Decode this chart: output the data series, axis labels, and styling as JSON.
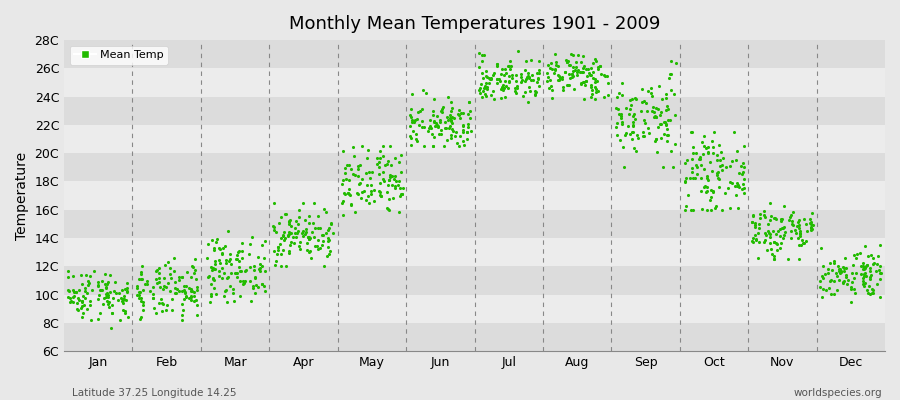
{
  "title": "Monthly Mean Temperatures 1901 - 2009",
  "ylabel": "Temperature",
  "subtitle_left": "Latitude 37.25 Longitude 14.25",
  "subtitle_right": "worldspecies.org",
  "legend_label": "Mean Temp",
  "dot_color": "#22bb00",
  "bg_color": "#e8e8e8",
  "plot_bg_light": "#ececec",
  "plot_bg_dark": "#dcdcdc",
  "yticks": [
    "6C",
    "8C",
    "10C",
    "12C",
    "14C",
    "16C",
    "18C",
    "20C",
    "22C",
    "24C",
    "26C",
    "28C"
  ],
  "yvalues": [
    6,
    8,
    10,
    12,
    14,
    16,
    18,
    20,
    22,
    24,
    26,
    28
  ],
  "ylim": [
    6,
    28
  ],
  "months": [
    "Jan",
    "Feb",
    "Mar",
    "Apr",
    "May",
    "Jun",
    "Jul",
    "Aug",
    "Sep",
    "Oct",
    "Nov",
    "Dec"
  ],
  "mean_temps_by_month": {
    "Jan": {
      "mean": 10.0,
      "std": 0.9,
      "min": 7.5,
      "max": 13.0
    },
    "Feb": {
      "mean": 10.2,
      "std": 1.0,
      "min": 7.5,
      "max": 13.0
    },
    "Mar": {
      "mean": 11.8,
      "std": 1.1,
      "min": 9.5,
      "max": 14.5
    },
    "Apr": {
      "mean": 14.2,
      "std": 1.0,
      "min": 12.0,
      "max": 16.5
    },
    "May": {
      "mean": 17.8,
      "std": 1.3,
      "min": 15.0,
      "max": 20.5
    },
    "Jun": {
      "mean": 22.0,
      "std": 0.9,
      "min": 20.5,
      "max": 24.5
    },
    "Jul": {
      "mean": 25.2,
      "std": 0.8,
      "min": 23.5,
      "max": 27.5
    },
    "Aug": {
      "mean": 25.5,
      "std": 0.8,
      "min": 23.8,
      "max": 27.0
    },
    "Sep": {
      "mean": 22.5,
      "std": 1.5,
      "min": 19.0,
      "max": 26.5
    },
    "Oct": {
      "mean": 18.5,
      "std": 1.3,
      "min": 16.0,
      "max": 21.5
    },
    "Nov": {
      "mean": 14.5,
      "std": 1.0,
      "min": 12.5,
      "max": 16.5
    },
    "Dec": {
      "mean": 11.5,
      "std": 0.9,
      "min": 9.5,
      "max": 13.5
    }
  },
  "n_years": 109
}
